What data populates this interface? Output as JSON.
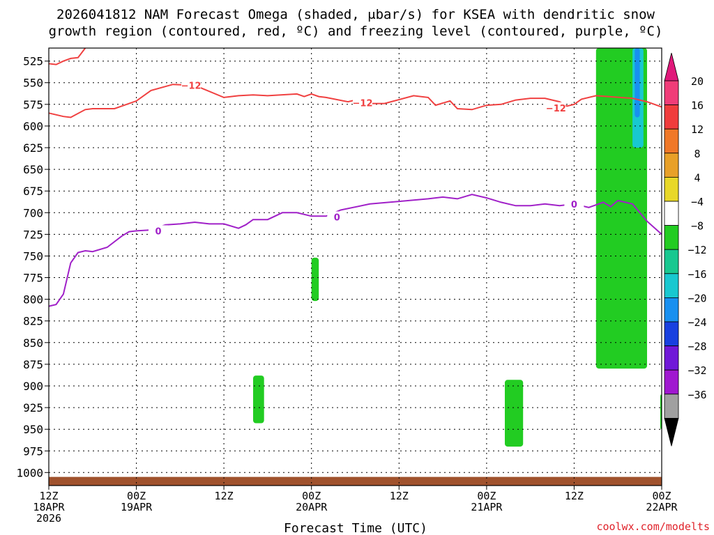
{
  "title": {
    "line1": "2026041812 NAM Forecast Omega (shaded, μbar/s) for KSEA with dendritic snow",
    "line2": "growth region (contoured, red, ºC) and freezing level (contoured, purple, ºC)"
  },
  "credit": "coolwx.com/modelts",
  "colors": {
    "dgz_line": "#f04040",
    "freezing_line": "#a020c8",
    "terrain": "#a0522d",
    "omega_green": "#22cc22",
    "grid": "#000000"
  },
  "chart_data": {
    "type": "heatmap",
    "title": "2026041812 NAM Forecast Omega (shaded, μbar/s) for KSEA with dendritic snow growth region (contoured, red, ºC) and freezing level (contoured, purple, ºC)",
    "xlabel": "Forecast Time (UTC)",
    "ylabel": "",
    "x_unit": "forecast hour from 2026-04-18 12Z",
    "xlim": [
      0,
      84
    ],
    "ylim": [
      1015,
      510
    ],
    "y_ticks": [
      525,
      550,
      575,
      600,
      625,
      650,
      675,
      700,
      725,
      750,
      775,
      800,
      825,
      850,
      875,
      900,
      925,
      950,
      975,
      1000
    ],
    "x_ticks": [
      {
        "hour": 0,
        "lines": [
          "12Z",
          "18APR",
          "2026"
        ]
      },
      {
        "hour": 12,
        "lines": [
          "00Z",
          "19APR"
        ]
      },
      {
        "hour": 24,
        "lines": [
          "12Z"
        ]
      },
      {
        "hour": 36,
        "lines": [
          "00Z",
          "20APR"
        ]
      },
      {
        "hour": 48,
        "lines": [
          "12Z"
        ]
      },
      {
        "hour": 60,
        "lines": [
          "00Z",
          "21APR"
        ]
      },
      {
        "hour": 72,
        "lines": [
          "12Z"
        ]
      },
      {
        "hour": 84,
        "lines": [
          "00Z",
          "22APR"
        ]
      }
    ],
    "grid": true,
    "colorbar": {
      "labels": [
        "20",
        "16",
        "12",
        "8",
        "4",
        "−4",
        "−8",
        "−12",
        "−16",
        "−20",
        "−24",
        "−28",
        "−32",
        "−36"
      ],
      "colors": [
        "#f03c78",
        "#f03c3c",
        "#f07828",
        "#e8a028",
        "#e8d828",
        "#ffffff",
        "#22cc22",
        "#18c890",
        "#18c8d0",
        "#1890f0",
        "#1840e0",
        "#7018d8",
        "#a018d0",
        "#a0a0a0"
      ],
      "top_arrow_color": "#e0187a",
      "bottom_arrow_color": "#000000"
    },
    "dgz_contour_label": "−12",
    "dgz_upper_boundary": {
      "x": [
        0,
        1,
        2,
        3,
        4,
        5
      ],
      "y": [
        528,
        529,
        525,
        522,
        521,
        510
      ]
    },
    "dgz_lower_boundary": {
      "x": [
        0,
        2,
        3,
        5,
        6,
        8,
        9,
        12,
        14,
        17,
        20,
        24,
        25,
        26,
        28,
        30,
        34,
        35,
        36,
        37,
        38,
        41,
        42,
        43,
        44,
        46,
        50,
        52,
        53,
        55,
        56,
        58,
        60,
        62,
        64,
        66,
        68,
        70,
        71,
        72,
        73,
        75,
        80,
        82,
        84
      ],
      "y": [
        585,
        589,
        590,
        581,
        580,
        580,
        580,
        571,
        559,
        552,
        553,
        567,
        566,
        565,
        564,
        565,
        563,
        566,
        563,
        566,
        567,
        572,
        570,
        573,
        574,
        574,
        565,
        567,
        576,
        571,
        580,
        581,
        576,
        575,
        570,
        568,
        568,
        572,
        577,
        575,
        569,
        565,
        568,
        572,
        578
      ]
    },
    "freezing_level": {
      "name": "0",
      "x": [
        0,
        1,
        2,
        3,
        4,
        5,
        6,
        8,
        10,
        11,
        12,
        14,
        16,
        18,
        20,
        22,
        24,
        26,
        27,
        28,
        30,
        32,
        34,
        36,
        38,
        40,
        44,
        48,
        52,
        54,
        56,
        58,
        60,
        62,
        64,
        66,
        68,
        70,
        72,
        74,
        76,
        77,
        78,
        80,
        82,
        84
      ],
      "y": [
        808,
        806,
        794,
        758,
        746,
        744,
        745,
        740,
        727,
        722,
        721,
        720,
        714,
        713,
        711,
        713,
        713,
        718,
        714,
        708,
        708,
        700,
        700,
        704,
        704,
        697,
        690,
        687,
        684,
        682,
        684,
        679,
        683,
        688,
        692,
        692,
        690,
        692,
        690,
        694,
        688,
        693,
        686,
        690,
        710,
        725
      ]
    },
    "omega_regions": [
      {
        "value_range": "−4 to −8",
        "x_range": [
          36,
          37
        ],
        "p_range": [
          752,
          802
        ]
      },
      {
        "value_range": "−4 to −8",
        "x_range": [
          28,
          29.5
        ],
        "p_range": [
          888,
          943
        ]
      },
      {
        "value_range": "−4 to −8",
        "x_range": [
          62.5,
          65
        ],
        "p_range": [
          893,
          970
        ]
      },
      {
        "value_range": "−4 to −8",
        "x_range": [
          75,
          82
        ],
        "p_range": [
          510,
          880
        ]
      },
      {
        "value_range": "−8 to −16",
        "x_range": [
          80,
          81.5
        ],
        "p_range": [
          510,
          625
        ]
      },
      {
        "value_range": "−16 to −20",
        "x_range": [
          80.3,
          81
        ],
        "p_range": [
          510,
          590
        ]
      },
      {
        "value_range": "−4 to −8",
        "x_range": [
          83.8,
          84
        ],
        "p_range": [
          910,
          950
        ]
      }
    ]
  }
}
